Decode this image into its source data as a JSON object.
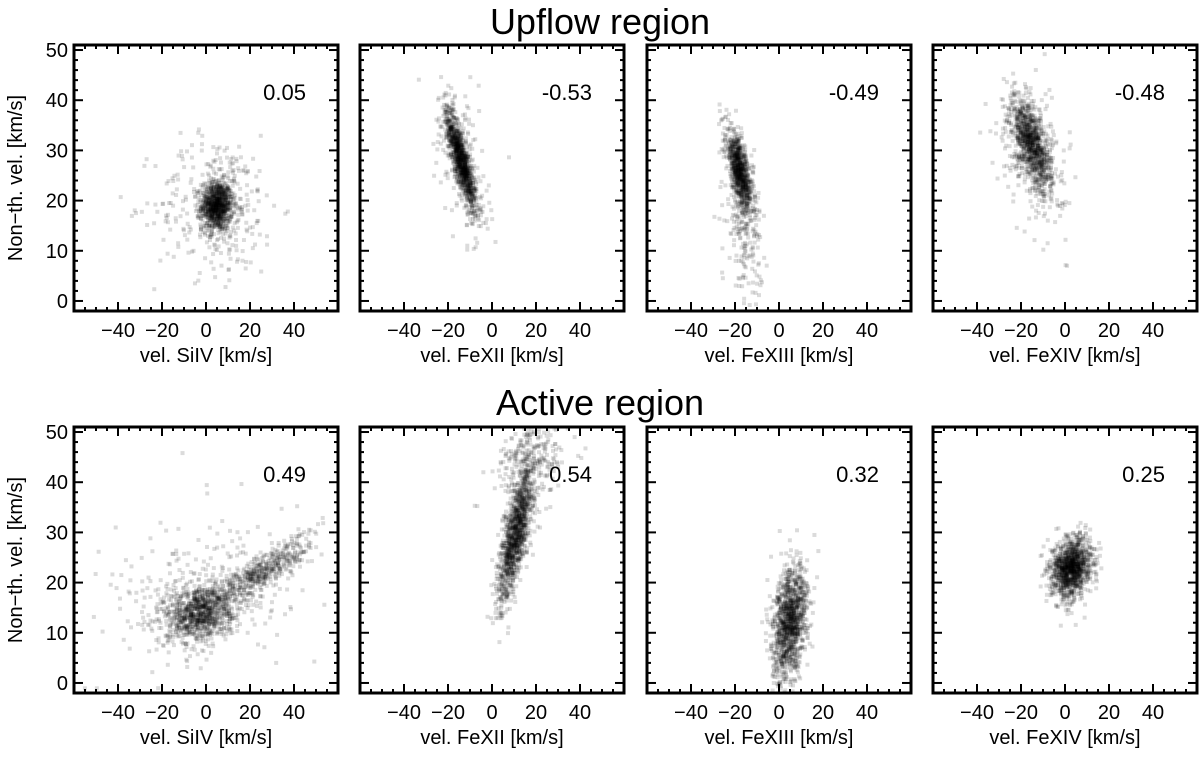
{
  "sections": {
    "upflow": {
      "title": "Upflow region"
    },
    "active": {
      "title": "Active region"
    }
  },
  "ylabel": "Non−th. vel. [km/s]",
  "colors": {
    "points": "#000000",
    "frame": "#000000",
    "background": "#ffffff"
  },
  "chart_data": [
    {
      "type": "scatter",
      "row": "Upflow region",
      "xlabel": "vel. SiIV [km/s]",
      "ylabel": "Non−th. vel. [km/s]",
      "xlim": [
        -60,
        60
      ],
      "ylim": [
        -2,
        51
      ],
      "xticks": [
        -40,
        -20,
        0,
        20,
        40
      ],
      "yticks": [
        0,
        10,
        20,
        30,
        40,
        50
      ],
      "xtick_labels": [
        "−40",
        "−20",
        "0",
        "20",
        "40"
      ],
      "ytick_labels": [
        "0",
        "10",
        "20",
        "30",
        "40",
        "50"
      ],
      "show_ytick_labels": true,
      "annotation": "0.05",
      "clusters": [
        {
          "cx": 5,
          "cy": 19,
          "sx": 3.5,
          "sy": 2.5,
          "rho": 0.0,
          "n": 900
        },
        {
          "cx": 5,
          "cy": 19,
          "sx": 14,
          "sy": 7,
          "rho": 0.0,
          "n": 300
        }
      ]
    },
    {
      "type": "scatter",
      "row": "Upflow region",
      "xlabel": "vel. FeXII [km/s]",
      "ylabel": "",
      "xlim": [
        -60,
        60
      ],
      "ylim": [
        -2,
        51
      ],
      "xticks": [
        -40,
        -20,
        0,
        20,
        40
      ],
      "yticks": [
        0,
        10,
        20,
        30,
        40,
        50
      ],
      "xtick_labels": [
        "−40",
        "−20",
        "0",
        "20",
        "40"
      ],
      "ytick_labels": [
        "0",
        "10",
        "20",
        "30",
        "40",
        "50"
      ],
      "show_ytick_labels": false,
      "annotation": "-0.53",
      "clusters": [
        {
          "cx": -14,
          "cy": 28,
          "sx": 3.5,
          "sy": 5,
          "rho": -0.85,
          "n": 1000
        },
        {
          "cx": -14,
          "cy": 28,
          "sx": 6,
          "sy": 8,
          "rho": -0.5,
          "n": 200
        }
      ]
    },
    {
      "type": "scatter",
      "row": "Upflow region",
      "xlabel": "vel. FeXIII [km/s]",
      "ylabel": "",
      "xlim": [
        -60,
        60
      ],
      "ylim": [
        -2,
        51
      ],
      "xticks": [
        -40,
        -20,
        0,
        20,
        40
      ],
      "yticks": [
        0,
        10,
        20,
        30,
        40,
        50
      ],
      "xtick_labels": [
        "−40",
        "−20",
        "0",
        "20",
        "40"
      ],
      "ytick_labels": [
        "0",
        "10",
        "20",
        "30",
        "40",
        "50"
      ],
      "show_ytick_labels": false,
      "annotation": "-0.49",
      "clusters": [
        {
          "cx": -18,
          "cy": 26,
          "sx": 3,
          "sy": 4,
          "rho": -0.7,
          "n": 800
        },
        {
          "cx": -16,
          "cy": 16,
          "sx": 4,
          "sy": 7,
          "rho": -0.3,
          "n": 250
        }
      ]
    },
    {
      "type": "scatter",
      "row": "Upflow region",
      "xlabel": "vel. FeXIV [km/s]",
      "ylabel": "",
      "xlim": [
        -60,
        60
      ],
      "ylim": [
        -2,
        51
      ],
      "xticks": [
        -40,
        -20,
        0,
        20,
        40
      ],
      "yticks": [
        0,
        10,
        20,
        30,
        40,
        50
      ],
      "xtick_labels": [
        "−40",
        "−20",
        "0",
        "20",
        "40"
      ],
      "ytick_labels": [
        "0",
        "10",
        "20",
        "30",
        "40",
        "50"
      ],
      "show_ytick_labels": false,
      "annotation": "-0.48",
      "clusters": [
        {
          "cx": -15,
          "cy": 31,
          "sx": 4.5,
          "sy": 4.5,
          "rho": -0.6,
          "n": 900
        },
        {
          "cx": -15,
          "cy": 30,
          "sx": 8,
          "sy": 7,
          "rho": -0.4,
          "n": 250
        }
      ]
    },
    {
      "type": "scatter",
      "row": "Active region",
      "xlabel": "vel. SiIV [km/s]",
      "ylabel": "Non−th. vel. [km/s]",
      "xlim": [
        -60,
        60
      ],
      "ylim": [
        -2,
        51
      ],
      "xticks": [
        -40,
        -20,
        0,
        20,
        40
      ],
      "yticks": [
        0,
        10,
        20,
        30,
        40,
        50
      ],
      "xtick_labels": [
        "−40",
        "−20",
        "0",
        "20",
        "40"
      ],
      "ytick_labels": [
        "0",
        "10",
        "20",
        "30",
        "40",
        "50"
      ],
      "show_ytick_labels": true,
      "annotation": "0.49",
      "clusters": [
        {
          "cx": -3,
          "cy": 14,
          "sx": 8,
          "sy": 3,
          "rho": 0.2,
          "n": 900
        },
        {
          "cx": 25,
          "cy": 22,
          "sx": 12,
          "sy": 3.5,
          "rho": 0.85,
          "n": 500
        },
        {
          "cx": 0,
          "cy": 18,
          "sx": 25,
          "sy": 8,
          "rho": 0.3,
          "n": 250
        }
      ]
    },
    {
      "type": "scatter",
      "row": "Active region",
      "xlabel": "vel. FeXII [km/s]",
      "ylabel": "",
      "xlim": [
        -60,
        60
      ],
      "ylim": [
        -2,
        51
      ],
      "xticks": [
        -40,
        -20,
        0,
        20,
        40
      ],
      "yticks": [
        0,
        10,
        20,
        30,
        40,
        50
      ],
      "xtick_labels": [
        "−40",
        "−20",
        "0",
        "20",
        "40"
      ],
      "ytick_labels": [
        "0",
        "10",
        "20",
        "30",
        "40",
        "50"
      ],
      "show_ytick_labels": false,
      "annotation": "0.54",
      "clusters": [
        {
          "cx": 11,
          "cy": 30,
          "sx": 4,
          "sy": 7,
          "rho": 0.75,
          "n": 1200
        },
        {
          "cx": 18,
          "cy": 44,
          "sx": 8,
          "sy": 4,
          "rho": 0.2,
          "n": 250
        }
      ]
    },
    {
      "type": "scatter",
      "row": "Active region",
      "xlabel": "vel. FeXIII [km/s]",
      "ylabel": "",
      "xlim": [
        -60,
        60
      ],
      "ylim": [
        -2,
        51
      ],
      "xticks": [
        -40,
        -20,
        0,
        20,
        40
      ],
      "yticks": [
        0,
        10,
        20,
        30,
        40,
        50
      ],
      "xtick_labels": [
        "−40",
        "−20",
        "0",
        "20",
        "40"
      ],
      "ytick_labels": [
        "0",
        "10",
        "20",
        "30",
        "40",
        "50"
      ],
      "show_ytick_labels": false,
      "annotation": "0.32",
      "clusters": [
        {
          "cx": 5,
          "cy": 12,
          "sx": 4,
          "sy": 5.5,
          "rho": 0.3,
          "n": 1200
        }
      ]
    },
    {
      "type": "scatter",
      "row": "Active region",
      "xlabel": "vel. FeXIV [km/s]",
      "ylabel": "",
      "xlim": [
        -60,
        60
      ],
      "ylim": [
        -2,
        51
      ],
      "xticks": [
        -40,
        -20,
        0,
        20,
        40
      ],
      "yticks": [
        0,
        10,
        20,
        30,
        40,
        50
      ],
      "xtick_labels": [
        "−40",
        "−20",
        "0",
        "20",
        "40"
      ],
      "ytick_labels": [
        "0",
        "10",
        "20",
        "30",
        "40",
        "50"
      ],
      "show_ytick_labels": false,
      "annotation": "0.25",
      "clusters": [
        {
          "cx": 3,
          "cy": 23,
          "sx": 4.5,
          "sy": 3,
          "rho": 0.2,
          "n": 1200
        }
      ]
    }
  ]
}
